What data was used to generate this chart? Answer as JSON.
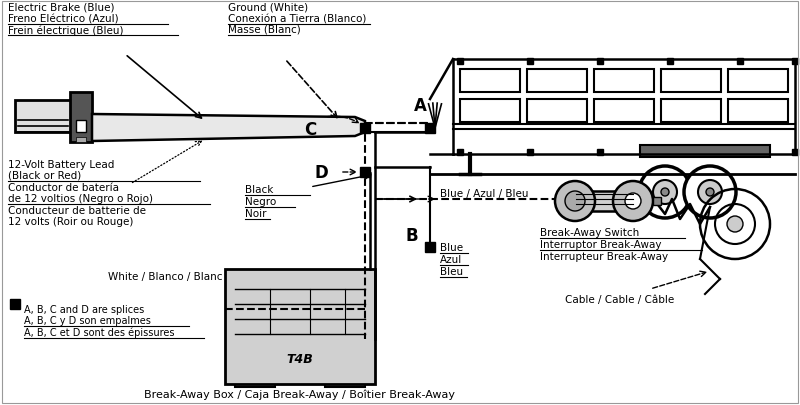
{
  "bg": "#ffffff",
  "lc": "#000000",
  "gray": "#555555",
  "fig_w": 8.0,
  "fig_h": 4.06,
  "dpi": 100,
  "label_eb_1": "Electric Brake (Blue)",
  "label_eb_2": "Freno Eléctrico (Azul)",
  "label_eb_3": "Frein électrique (Bleu)",
  "label_gnd_1": "Ground (White)",
  "label_gnd_2": "Conexión a Tierra (Blanco)",
  "label_gnd_3": "Masse (Blanc)",
  "label_bat_1": "12-Volt Battery Lead",
  "label_bat_2": "(Black or Red)",
  "label_bat_3": "Conductor de batería",
  "label_bat_4": "de 12 voltios (Negro o Rojo)",
  "label_bat_5": "Conducteur de batterie de",
  "label_bat_6": "12 volts (Roir ou Rouge)",
  "label_white": "White / Blanco / Blanc",
  "label_black_1": "Black",
  "label_black_2": "Negro",
  "label_black_3": "Noir",
  "label_blue_h": "Blue / Azul / Bleu",
  "label_blue_v1": "Blue",
  "label_blue_v2": "Azul",
  "label_blue_v3": "Bleu",
  "label_baw_1": "Break-Away Switch",
  "label_baw_2": "Interruptor Break-Away",
  "label_baw_3": "Interrupteur Break-Away",
  "label_cable": "Cable / Cable / Câble",
  "label_box": "Break-Away Box / Caja Break-Away / Boîtier Break-Away",
  "label_sp_1": "A, B, C and D are splices",
  "label_sp_2": "A, B, C y D son empalmes",
  "label_sp_3": "A, B, C et D sont des épissures",
  "label_A": "A",
  "label_B": "B",
  "label_C": "C",
  "label_D": "D"
}
